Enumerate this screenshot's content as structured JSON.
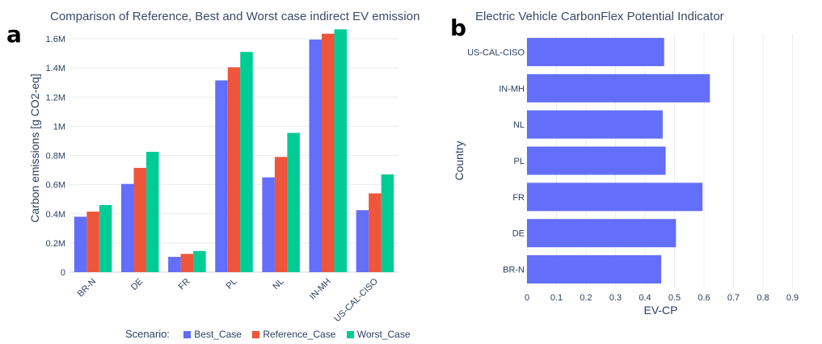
{
  "panels": {
    "a": {
      "letter": "a"
    },
    "b": {
      "letter": "b"
    }
  },
  "chart_data": [
    {
      "type": "bar",
      "title": "Comparison of Reference, Best and Worst case indirect EV emission",
      "xlabel": "",
      "ylabel": "Carbon emissions [g CO2-eq]",
      "categories": [
        "BR-N",
        "DE",
        "FR",
        "PL",
        "NL",
        "IN-MH",
        "US-CAL-CISO"
      ],
      "ylim": [
        0,
        1700000
      ],
      "yticks": [
        0,
        200000,
        400000,
        600000,
        800000,
        1000000,
        1200000,
        1400000,
        1600000
      ],
      "ytick_labels": [
        "0",
        "0.2M",
        "0.4M",
        "0.6M",
        "0.8M",
        "1M",
        "1.2M",
        "1.4M",
        "1.6M"
      ],
      "grid": true,
      "legend_title": "Scenario:",
      "legend_position": "bottom",
      "series": [
        {
          "name": "Best_Case",
          "color": "#636efa",
          "values": [
            380000,
            605000,
            105000,
            1315000,
            650000,
            1595000,
            425000
          ]
        },
        {
          "name": "Reference_Case",
          "color": "#ef553b",
          "values": [
            415000,
            715000,
            125000,
            1405000,
            790000,
            1635000,
            540000
          ]
        },
        {
          "name": "Worst_Case",
          "color": "#00cc96",
          "values": [
            460000,
            825000,
            145000,
            1510000,
            955000,
            1665000,
            670000
          ]
        }
      ]
    },
    {
      "type": "bar",
      "orientation": "horizontal",
      "title": "Electric Vehicle CarbonFlex Potential Indicator",
      "xlabel": "EV-CP",
      "ylabel": "Country",
      "categories": [
        "US-CAL-CISO",
        "IN-MH",
        "NL",
        "PL",
        "FR",
        "DE",
        "BR-N"
      ],
      "values": [
        0.465,
        0.62,
        0.46,
        0.47,
        0.595,
        0.505,
        0.455
      ],
      "color": "#636efa",
      "xlim": [
        0,
        1
      ],
      "xticks": [
        0,
        0.1,
        0.2,
        0.3,
        0.4,
        0.5,
        0.6,
        0.7,
        0.8,
        0.9
      ],
      "xtick_labels": [
        "0",
        "0.1",
        "0.2",
        "0.3",
        "0.4",
        "0.5",
        "0.6",
        "0.7",
        "0.8",
        "0.9"
      ],
      "grid": true
    }
  ]
}
